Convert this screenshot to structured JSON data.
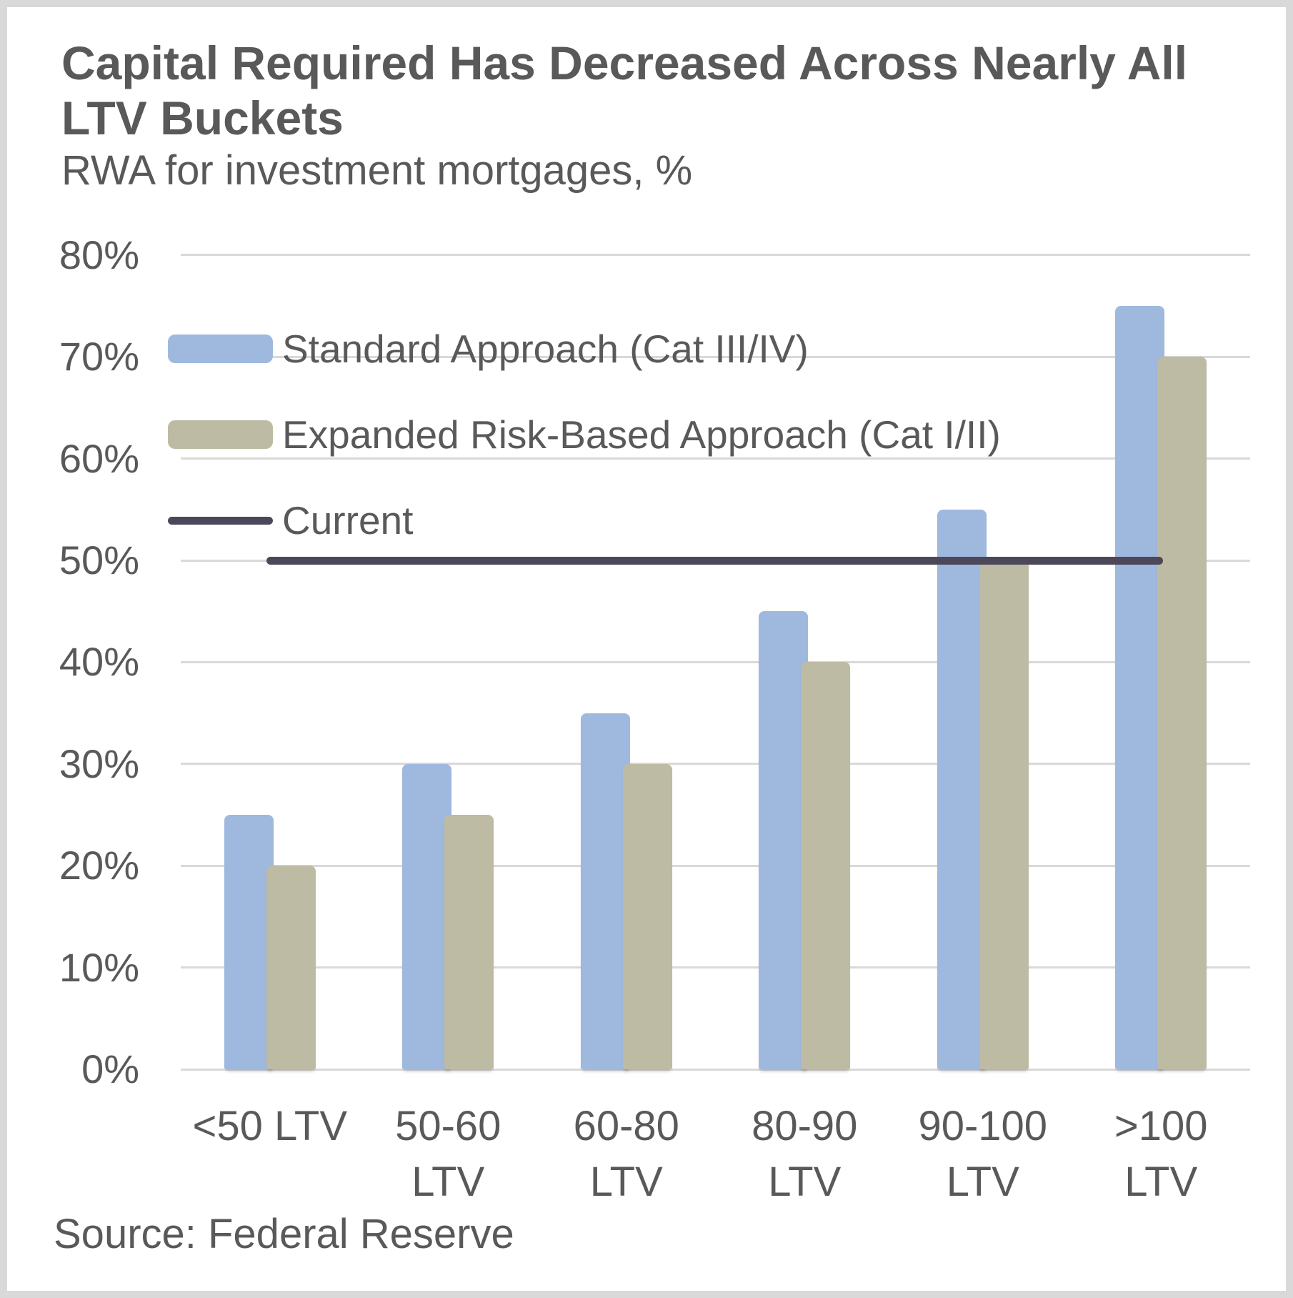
{
  "header": {
    "title": "Capital Required Has Decreased Across Nearly All\nLTV Buckets",
    "subtitle": "RWA for investment mortgages, %"
  },
  "source": "Source: Federal Reserve",
  "colors": {
    "standard_blue": "#9FB8DE",
    "expanded_tan": "#BEBBA4",
    "current_line": "#4C4759",
    "text": "#595959",
    "gridline": "#D9D9D9"
  },
  "legend": {
    "items": [
      {
        "label": "Standard Approach (Cat III/IV)",
        "swatch": "rect",
        "color": "#9FB8DE"
      },
      {
        "label": "Expanded Risk-Based Approach (Cat I/II)",
        "swatch": "rect",
        "color": "#BEBBA4"
      },
      {
        "label": "Current",
        "swatch": "line",
        "color": "#4C4759"
      }
    ]
  },
  "chart_data": {
    "type": "bar",
    "title": "Capital Required Has Decreased Across Nearly All LTV Buckets",
    "subtitle": "RWA for investment mortgages, %",
    "categories": [
      "<50 LTV",
      "50-60\nLTV",
      "60-80\nLTV",
      "80-90\nLTV",
      "90-100\nLTV",
      ">100\nLTV"
    ],
    "series": [
      {
        "name": "Standard Approach (Cat III/IV)",
        "color": "#9FB8DE",
        "values": [
          25,
          30,
          35,
          45,
          55,
          75
        ]
      },
      {
        "name": "Expanded Risk-Based Approach (Cat I/II)",
        "color": "#BEBBA4",
        "values": [
          20,
          25,
          30,
          40,
          50,
          70
        ]
      }
    ],
    "reference_line": {
      "name": "Current",
      "value": 50,
      "color": "#4C4759"
    },
    "y_axis": {
      "min": 0,
      "max": 80,
      "step": 10,
      "tick_labels": [
        "0%",
        "10%",
        "20%",
        "30%",
        "40%",
        "50%",
        "60%",
        "70%",
        "80%"
      ]
    },
    "x_axis_label": "",
    "y_axis_label": "",
    "grid": true,
    "legend_position": "top-left-overlay"
  }
}
